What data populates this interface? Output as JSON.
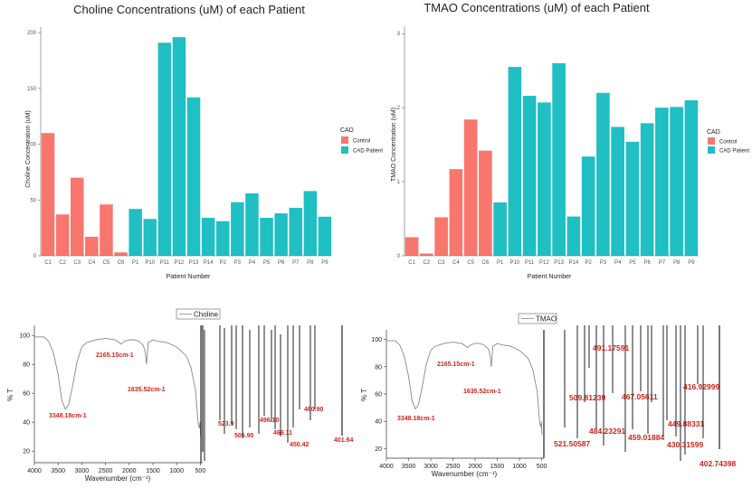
{
  "chart_data": [
    {
      "type": "bar",
      "title": "Choline Concentrations (uM) of each Patient",
      "xlabel": "Patient Number",
      "ylabel": "Choline Concentration (uM)",
      "ylim": [
        0,
        205
      ],
      "yticks": [
        0,
        50,
        100,
        150,
        200
      ],
      "categories": [
        "C1",
        "C2",
        "C3",
        "C4",
        "C5",
        "C6",
        "P1",
        "P10",
        "P11",
        "P12",
        "P13",
        "P14",
        "P2",
        "P3",
        "P4",
        "P5",
        "P6",
        "P7",
        "P8",
        "P9"
      ],
      "groups": [
        "Control",
        "Control",
        "Control",
        "Control",
        "Control",
        "Control",
        "CAD Patient",
        "CAD Patient",
        "CAD Patient",
        "CAD Patient",
        "CAD Patient",
        "CAD Patient",
        "CAD Patient",
        "CAD Patient",
        "CAD Patient",
        "CAD Patient",
        "CAD Patient",
        "CAD Patient",
        "CAD Patient",
        "CAD Patient"
      ],
      "values": [
        110,
        37,
        70,
        17,
        46,
        3,
        42,
        33,
        191,
        196,
        142,
        34,
        31,
        48,
        56,
        34,
        38,
        43,
        58,
        35
      ],
      "legend": {
        "title": "CAD",
        "entries": [
          {
            "name": "Control",
            "color": "#f8766d"
          },
          {
            "name": "CAD Patient",
            "color": "#1fbfc4"
          }
        ],
        "position": "right"
      },
      "grid": false
    },
    {
      "type": "bar",
      "title": "TMAO Concentrations (uM) of each Patient",
      "xlabel": "Patient Number",
      "ylabel": "TMAO Concentration (uM)",
      "ylim": [
        0,
        3.1
      ],
      "yticks": [
        0,
        1,
        2,
        3
      ],
      "categories": [
        "C1",
        "C2",
        "C3",
        "C4",
        "C5",
        "C6",
        "P1",
        "P10",
        "P11",
        "P12",
        "P13",
        "P14",
        "P2",
        "P3",
        "P4",
        "P5",
        "P6",
        "P7",
        "P8",
        "P9"
      ],
      "groups": [
        "Control",
        "Control",
        "Control",
        "Control",
        "Control",
        "Control",
        "CAD Patient",
        "CAD Patient",
        "CAD Patient",
        "CAD Patient",
        "CAD Patient",
        "CAD Patient",
        "CAD Patient",
        "CAD Patient",
        "CAD Patient",
        "CAD Patient",
        "CAD Patient",
        "CAD Patient",
        "CAD Patient",
        "CAD Patient"
      ],
      "values": [
        0.25,
        0.03,
        0.52,
        1.17,
        1.84,
        1.42,
        0.72,
        2.55,
        2.16,
        2.07,
        2.6,
        0.53,
        1.34,
        2.2,
        1.74,
        1.54,
        1.79,
        2.0,
        2.01,
        2.1
      ],
      "legend": {
        "title": "CAD",
        "entries": [
          {
            "name": "Control",
            "color": "#f8766d"
          },
          {
            "name": "CAD Patient",
            "color": "#1fbfc4"
          }
        ],
        "position": "right"
      },
      "grid": false
    },
    {
      "type": "line",
      "title": "",
      "legend_label": "Choline",
      "xlabel": "Wavenumber (cm⁻¹)",
      "ylabel": "% T",
      "xlim": [
        4000,
        450
      ],
      "xticks": [
        4000,
        3500,
        3000,
        2500,
        2000,
        1500,
        1000,
        500
      ],
      "ylim": [
        12,
        107
      ],
      "yticks": [
        20,
        40,
        60,
        80,
        100
      ],
      "x": [
        4000,
        3800,
        3700,
        3600,
        3500,
        3420,
        3348,
        3280,
        3200,
        3100,
        3000,
        2900,
        2700,
        2500,
        2300,
        2165,
        2100,
        2000,
        1900,
        1800,
        1700,
        1660,
        1635,
        1600,
        1500,
        1400,
        1200,
        1000,
        800,
        700,
        600,
        560,
        540,
        520,
        505,
        495
      ],
      "y": [
        99,
        99,
        96,
        88,
        73,
        55,
        49,
        52,
        64,
        82,
        92,
        95,
        97,
        98,
        97,
        94,
        96,
        97,
        97,
        96,
        93,
        88,
        80,
        95,
        97,
        96,
        95,
        92,
        86,
        78,
        62,
        45,
        38,
        36,
        40,
        30
      ],
      "annotations": [
        {
          "text": "3348.18cm-1"
        },
        {
          "text": "2165.15cm-1"
        },
        {
          "text": "1635.52cm-1"
        },
        {
          "text": "523.9"
        },
        {
          "text": "506.90"
        },
        {
          "text": "496.10"
        },
        {
          "text": "469.11"
        },
        {
          "text": "450.42"
        },
        {
          "text": "460.90"
        },
        {
          "text": "401.64"
        }
      ]
    },
    {
      "type": "line",
      "title": "",
      "legend_label": "TMAO",
      "xlabel": "Wavenumber (cm⁻¹)",
      "ylabel": "% T",
      "xlim": [
        4000,
        450
      ],
      "xticks": [
        4000,
        3500,
        3000,
        2500,
        2000,
        1500,
        1000,
        500
      ],
      "ylim": [
        13,
        107
      ],
      "yticks": [
        20,
        40,
        60,
        80,
        100
      ],
      "x": [
        4000,
        3800,
        3700,
        3600,
        3500,
        3420,
        3348,
        3280,
        3200,
        3100,
        3000,
        2900,
        2700,
        2500,
        2300,
        2165,
        2100,
        2000,
        1900,
        1800,
        1700,
        1660,
        1635,
        1600,
        1500,
        1400,
        1200,
        1000,
        800,
        700,
        600,
        560,
        540,
        520,
        505,
        495
      ],
      "y": [
        99,
        99,
        96,
        88,
        73,
        55,
        49,
        52,
        64,
        82,
        92,
        95,
        97,
        98,
        97,
        94,
        96,
        97,
        97,
        96,
        93,
        88,
        80,
        95,
        97,
        96,
        95,
        92,
        86,
        78,
        62,
        45,
        38,
        36,
        40,
        30
      ],
      "annotations": [
        {
          "text": "3348.18cm-1"
        },
        {
          "text": "2165.15cm-1"
        },
        {
          "text": "1635.52cm-1"
        },
        {
          "text": "491.17591"
        },
        {
          "text": "509.81239"
        },
        {
          "text": "467.05611"
        },
        {
          "text": "416.92999"
        },
        {
          "text": "484.23291"
        },
        {
          "text": "449.88331"
        },
        {
          "text": "521.50587"
        },
        {
          "text": "459.01884"
        },
        {
          "text": "430.31599"
        },
        {
          "text": "402.74398"
        }
      ]
    }
  ],
  "colors": {
    "control": "#f8766d",
    "cad": "#1fbfc4",
    "peak_label": "#d0241b",
    "spectrum": "#888888"
  }
}
